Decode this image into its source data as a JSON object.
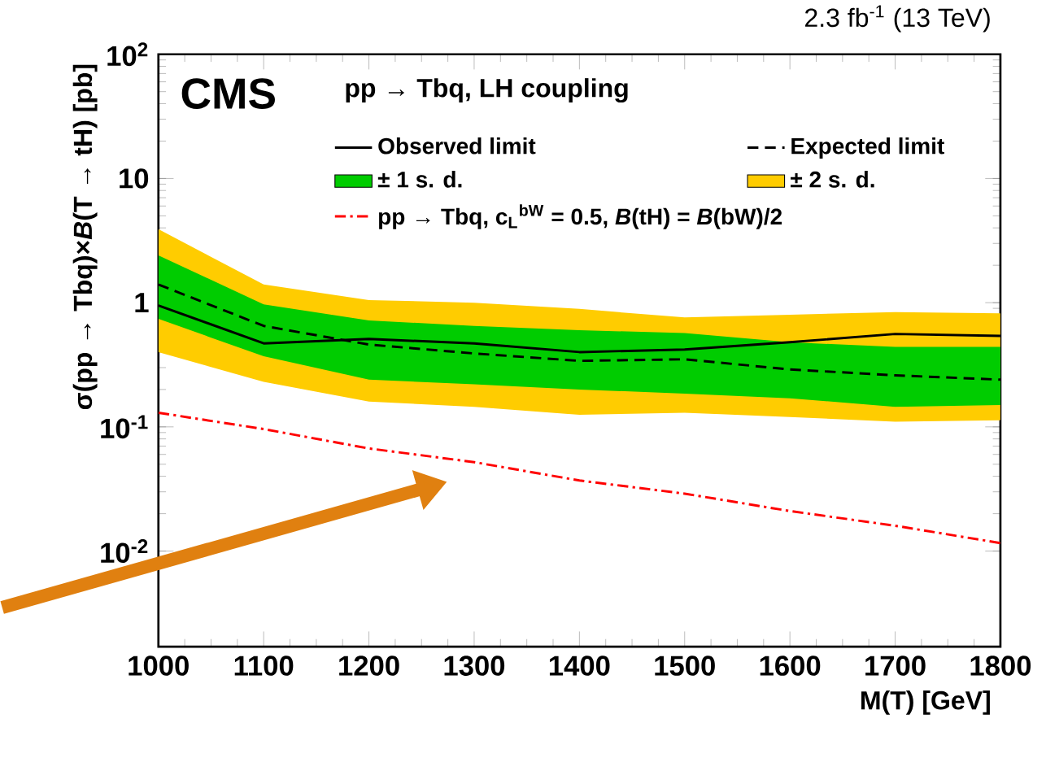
{
  "chart_data": {
    "type": "line",
    "title": "2.3 fb$^{-1}$ (13 TeV)",
    "xlabel": "M(T) [GeV]",
    "ylabel": "σ(pp → Tbq)×*B*(T → tH) [pb]",
    "legend_title": "pp → Tbq, LH coupling",
    "annotations": [
      "CMS"
    ],
    "x": [
      1000,
      1100,
      1200,
      1300,
      1400,
      1500,
      1600,
      1700,
      1800
    ],
    "series": [
      {
        "name": "Observed limit",
        "color": "#000000",
        "line_style": "solid",
        "values": [
          0.95,
          0.47,
          0.51,
          0.47,
          0.4,
          0.42,
          0.48,
          0.56,
          0.54
        ]
      },
      {
        "name": "Expected limit",
        "color": "#000000",
        "line_style": "dashed",
        "values": [
          1.4,
          0.65,
          0.46,
          0.39,
          0.34,
          0.35,
          0.29,
          0.26,
          0.24
        ]
      },
      {
        "name": "± 1 s. d.",
        "type": "area",
        "color": "#00cc00",
        "values": [
          null,
          null,
          null,
          null,
          null,
          null,
          null,
          null,
          null
        ],
        "lower": [
          0.74,
          0.37,
          0.24,
          0.22,
          0.2,
          0.185,
          0.17,
          0.145,
          0.15
        ],
        "upper": [
          2.4,
          0.97,
          0.72,
          0.65,
          0.6,
          0.57,
          0.48,
          0.44,
          0.44
        ]
      },
      {
        "name": "± 2 s. d.",
        "type": "area",
        "color": "#ffcc00",
        "values": [
          null,
          null,
          null,
          null,
          null,
          null,
          null,
          null,
          null
        ],
        "lower": [
          0.4,
          0.23,
          0.16,
          0.145,
          0.125,
          0.13,
          0.12,
          0.11,
          0.113
        ],
        "upper": [
          3.9,
          1.4,
          1.05,
          1.0,
          0.89,
          0.76,
          0.8,
          0.84,
          0.82
        ]
      },
      {
        "name": "pp → Tbq, c$_{L}$$^{bW}$ = 0.5, *B*(tH) = *B*(bW)/2",
        "color": "#ff0000",
        "line_style": "dashdot",
        "values": [
          0.13,
          0.096,
          0.067,
          0.052,
          0.037,
          0.029,
          0.021,
          0.016,
          0.0116
        ]
      }
    ],
    "log": "y",
    "legend": "top",
    "marker": "none",
    "grid": false,
    "xlim": [
      1000,
      1800
    ],
    "ylim": [
      0.0017,
      100
    ],
    "xticks": [
      1000,
      1100,
      1200,
      1300,
      1400,
      1500,
      1600,
      1700,
      1800
    ],
    "yticks": [
      {
        "value": 0.01,
        "label": "10$^{-2}$"
      },
      {
        "value": 0.1,
        "label": "10$^{-1}$"
      },
      1,
      10,
      {
        "value": 100,
        "label": "10$^{2}$"
      }
    ]
  }
}
